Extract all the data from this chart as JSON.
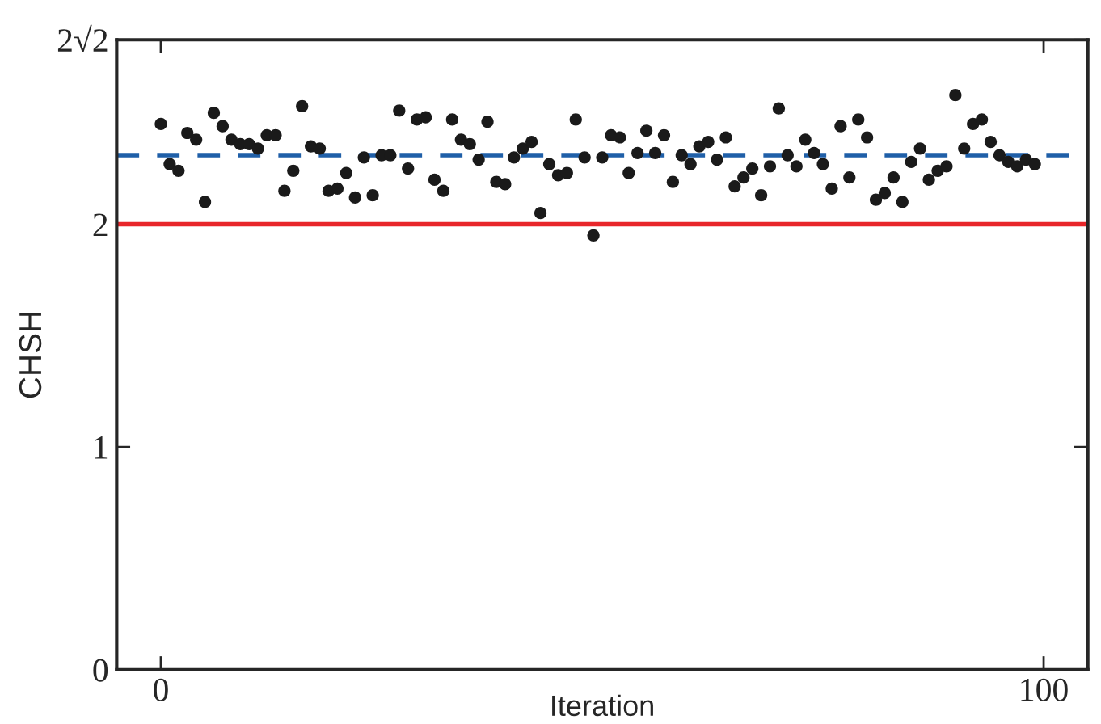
{
  "chart_data": {
    "type": "scatter",
    "xlabel": "Iteration",
    "ylabel": "CHSH",
    "x": [
      0,
      1,
      2,
      3,
      4,
      5,
      6,
      7,
      8,
      9,
      10,
      11,
      12,
      13,
      14,
      15,
      16,
      17,
      18,
      19,
      20,
      21,
      22,
      23,
      24,
      25,
      26,
      27,
      28,
      29,
      30,
      31,
      32,
      33,
      34,
      35,
      36,
      37,
      38,
      39,
      40,
      41,
      42,
      43,
      44,
      45,
      46,
      47,
      48,
      49,
      50,
      51,
      52,
      53,
      54,
      55,
      56,
      57,
      58,
      59,
      60,
      61,
      62,
      63,
      64,
      65,
      66,
      67,
      68,
      69,
      70,
      71,
      72,
      73,
      74,
      75,
      76,
      77,
      78,
      79,
      80,
      81,
      82,
      83,
      84,
      85,
      86,
      87,
      88,
      89,
      90,
      91,
      92,
      93,
      94,
      95,
      96,
      97,
      98,
      99
    ],
    "series": [
      {
        "color": "#1a1a1a",
        "values": [
          2.45,
          2.27,
          2.24,
          2.41,
          2.38,
          2.1,
          2.5,
          2.44,
          2.38,
          2.36,
          2.36,
          2.34,
          2.4,
          2.4,
          2.15,
          2.24,
          2.53,
          2.35,
          2.34,
          2.15,
          2.16,
          2.23,
          2.12,
          2.3,
          2.13,
          2.31,
          2.31,
          2.51,
          2.25,
          2.47,
          2.48,
          2.2,
          2.15,
          2.47,
          2.38,
          2.36,
          2.29,
          2.46,
          2.19,
          2.18,
          2.3,
          2.34,
          2.37,
          2.05,
          2.27,
          2.22,
          2.23,
          2.47,
          2.3,
          1.95,
          2.3,
          2.4,
          2.39,
          2.23,
          2.32,
          2.42,
          2.32,
          2.4,
          2.19,
          2.31,
          2.27,
          2.35,
          2.37,
          2.29,
          2.39,
          2.17,
          2.21,
          2.25,
          2.13,
          2.26,
          2.52,
          2.31,
          2.26,
          2.38,
          2.32,
          2.27,
          2.16,
          2.44,
          2.21,
          2.47,
          2.39,
          2.11,
          2.14,
          2.21,
          2.1,
          2.28,
          2.34,
          2.2,
          2.24,
          2.26,
          2.58,
          2.34,
          2.45,
          2.47,
          2.37,
          2.31,
          2.28,
          2.26,
          2.29,
          2.27
        ]
      }
    ],
    "marker": "circle",
    "ref_lines": [
      {
        "axis": "y",
        "value": 2.31,
        "color": "#1f5fa8",
        "line_style": "dashed"
      },
      {
        "axis": "y",
        "value": 2,
        "color": "#e8262a",
        "line_style": "solid"
      }
    ],
    "xlim": [
      -5,
      105
    ],
    "xticks": [
      0,
      100
    ],
    "ylim": [
      0,
      2.828
    ],
    "yticks": [
      0,
      1,
      2,
      {
        "value": 2.828,
        "label": "2√2"
      }
    ],
    "grid": false
  }
}
